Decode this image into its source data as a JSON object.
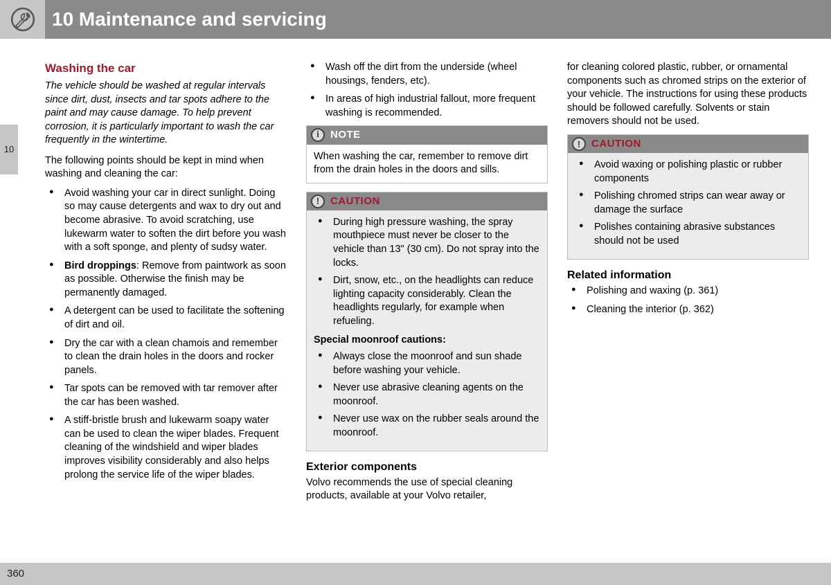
{
  "page": {
    "header_title": "10 Maintenance and servicing",
    "section_number": "10",
    "page_number": "360"
  },
  "colors": {
    "header_bg": "#8a8a8a",
    "light_gray": "#c6c6c6",
    "accent_red": "#a3182b",
    "callout_body_gray": "#ececec",
    "border_gray": "#bdbdbd"
  },
  "col1": {
    "title": "Washing the car",
    "intro": "The vehicle should be washed at regular intervals since dirt, dust, insects and tar spots adhere to the paint and may cause damage. To help prevent corrosion, it is particularly important to wash the car frequently in the wintertime.",
    "lead": "The following points should be kept in mind when washing and cleaning the car:",
    "bullets": [
      "Avoid washing your car in direct sunlight. Doing so may cause detergents and wax to dry out and become abrasive. To avoid scratching, use lukewarm water to soften the dirt before you wash with a soft sponge, and plenty of sudsy water.",
      "__BOLD__Bird droppings__END__: Remove from paintwork as soon as possible. Otherwise the finish may be permanently damaged.",
      "A detergent can be used to facilitate the softening of dirt and oil.",
      "Dry the car with a clean chamois and remember to clean the drain holes in the doors and rocker panels.",
      "Tar spots can be removed with tar remover after the car has been washed.",
      "A stiff-bristle brush and lukewarm soapy water can be used to clean the wiper blades. Frequent cleaning of the windshield and wiper blades improves visibility considerably and also helps prolong the service life of the wiper blades."
    ]
  },
  "col2": {
    "top_bullets": [
      "Wash off the dirt from the underside (wheel housings, fenders, etc).",
      "In areas of high industrial fallout, more frequent washing is recommended."
    ],
    "note": {
      "label": "NOTE",
      "text": "When washing the car, remember to remove dirt from the drain holes in the doors and sills."
    },
    "caution": {
      "label": "CAUTION",
      "bullets_top": [
        "During high pressure washing, the spray mouthpiece must never be closer to the vehicle than 13\" (30 cm). Do not spray into the locks.",
        "Dirt, snow, etc., on the headlights can reduce lighting capacity considerably. Clean the headlights regularly, for example when refueling."
      ],
      "moonroof_title": "Special moonroof cautions:",
      "bullets_moon": [
        "Always close the moonroof and sun shade before washing your vehicle.",
        "Never use abrasive cleaning agents on the moonroof.",
        "Never use wax on the rubber seals around the moonroof."
      ]
    },
    "exterior": {
      "title": "Exterior components",
      "text": "Volvo recommends the use of special cleaning products, available at your Volvo retailer,"
    }
  },
  "col3": {
    "continuation": "for cleaning colored plastic, rubber, or ornamental components such as chromed strips on the exterior of your vehicle. The instructions for using these products should be followed carefully. Solvents or stain removers should not be used.",
    "caution": {
      "label": "CAUTION",
      "bullets": [
        "Avoid waxing or polishing plastic or rubber components",
        "Polishing chromed strips can wear away or damage the surface",
        "Polishes containing abrasive substances should not be used"
      ]
    },
    "related": {
      "title": "Related information",
      "items": [
        "Polishing and waxing (p. 361)",
        "Cleaning the interior (p. 362)"
      ]
    }
  }
}
